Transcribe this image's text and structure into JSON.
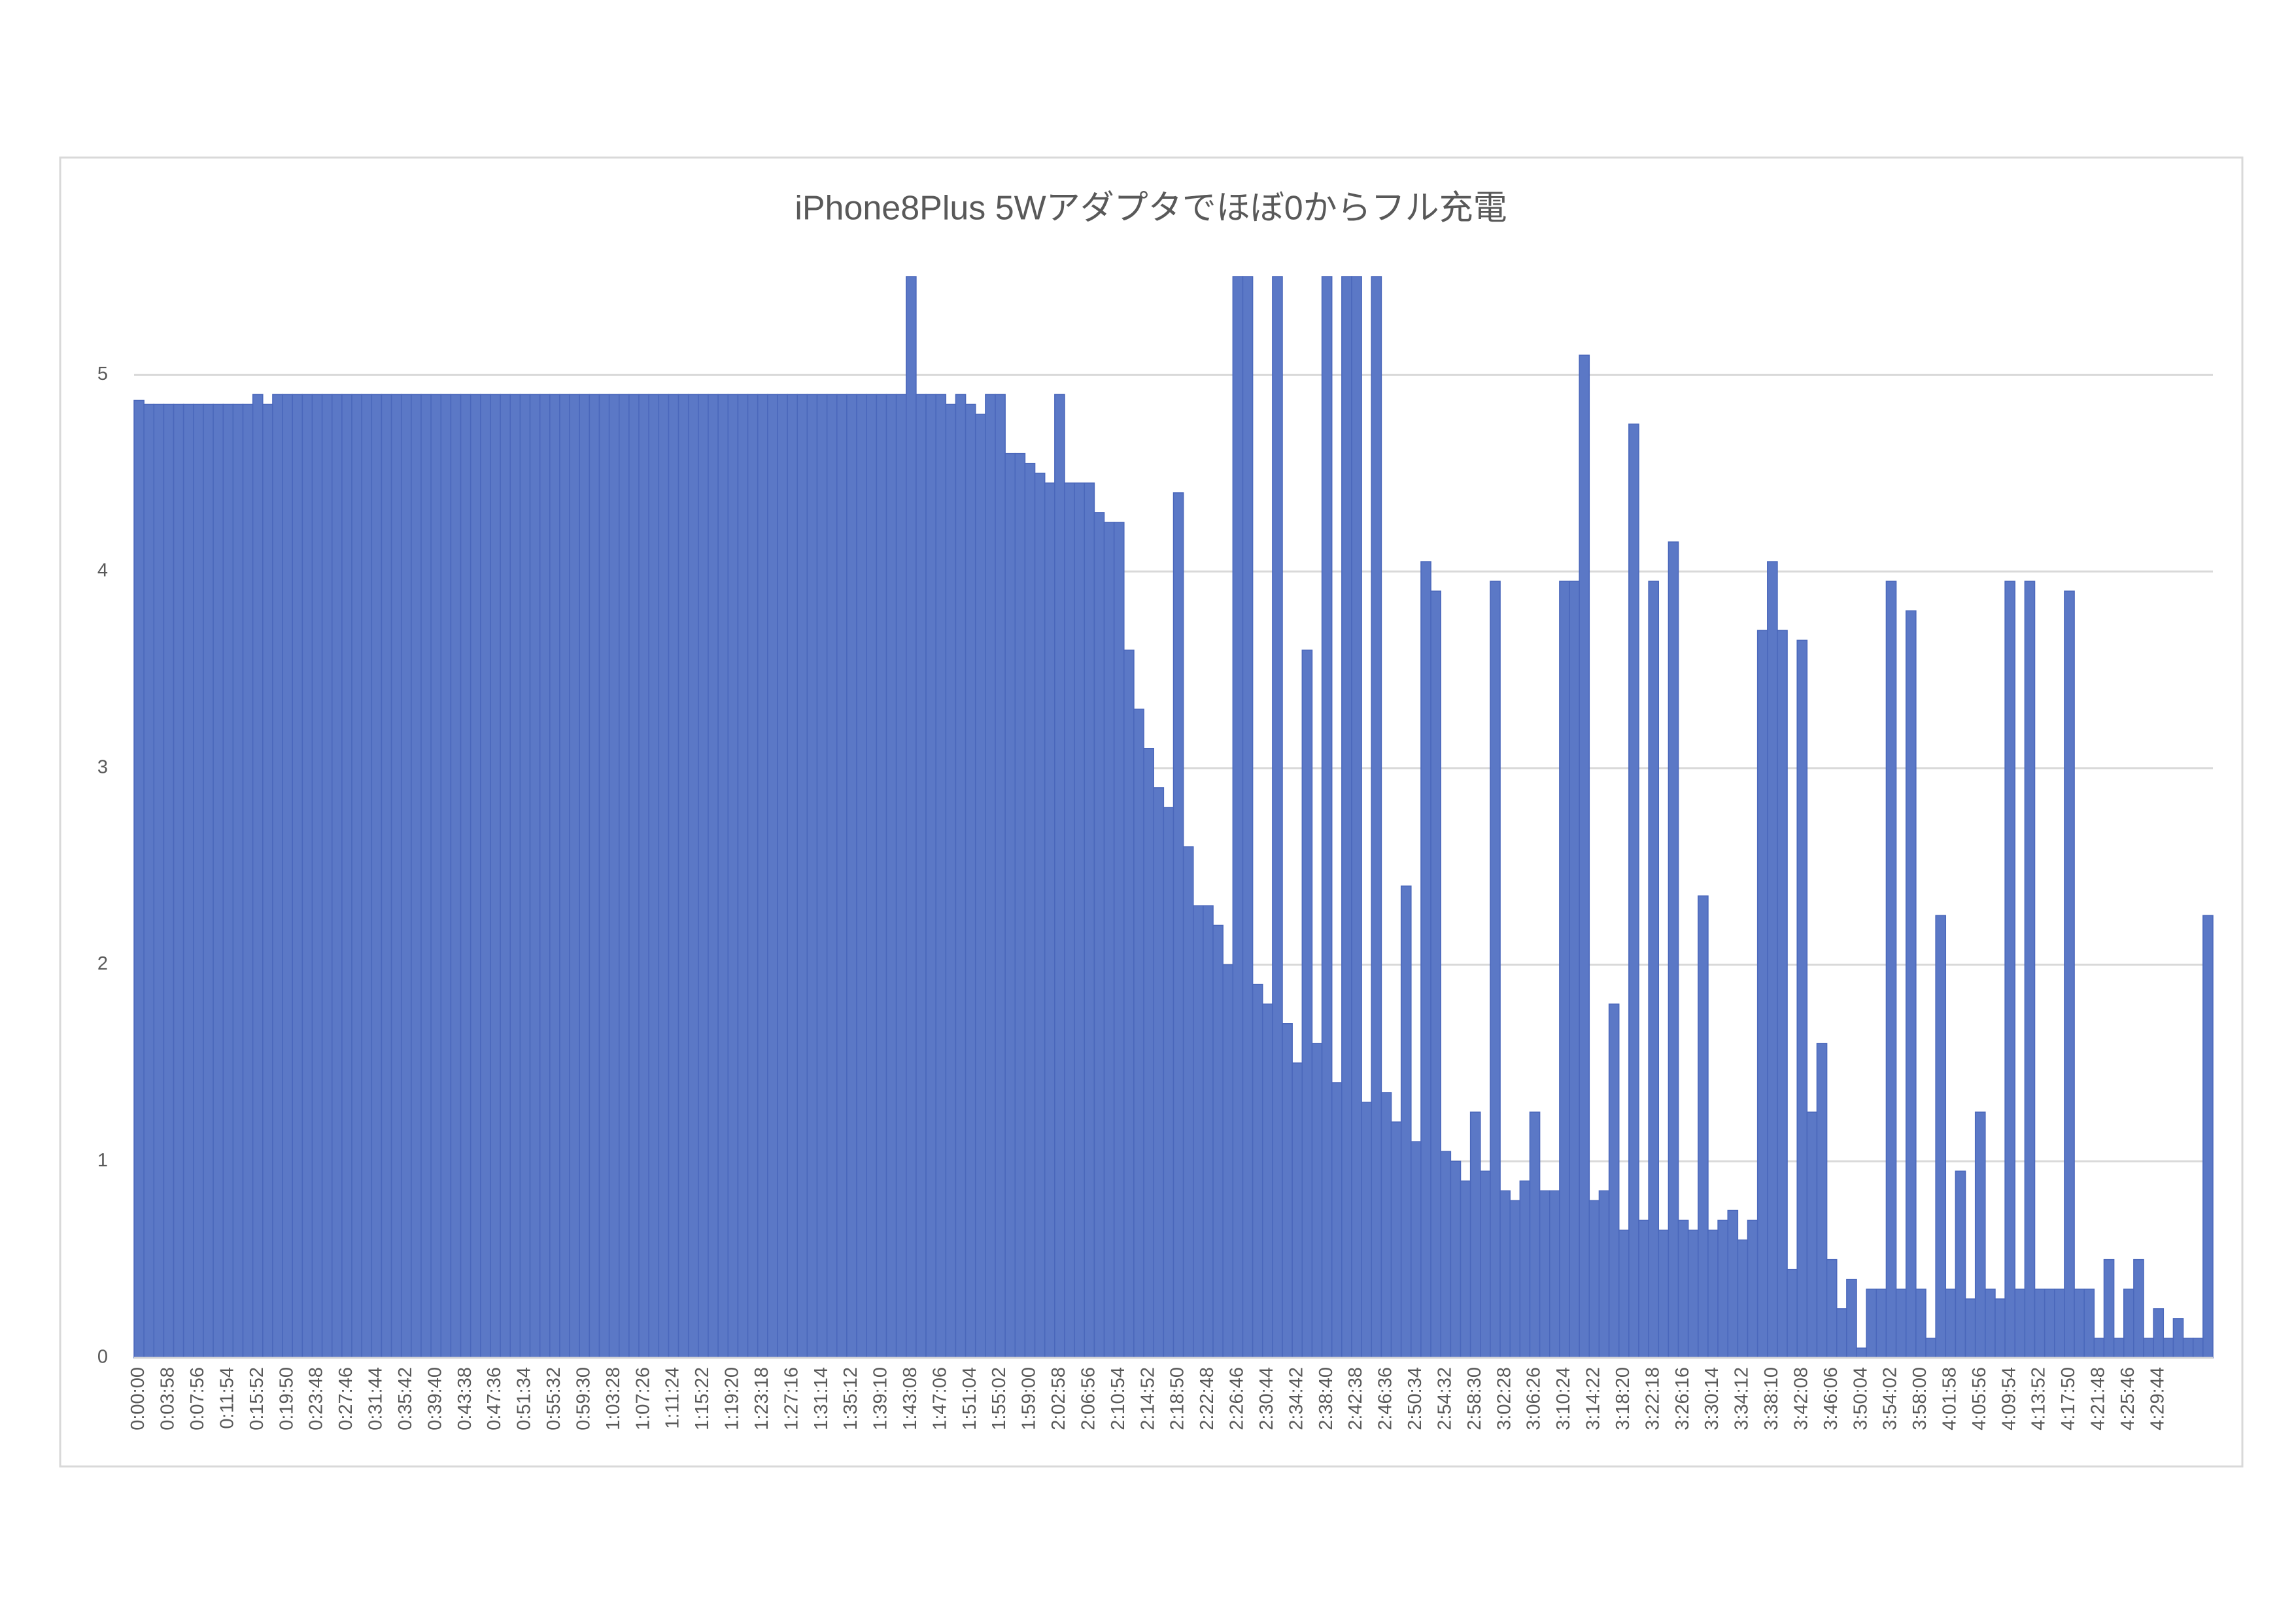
{
  "chart_data": {
    "type": "bar",
    "title": "iPhone8Plus  5Wアダプタでほぼ0からフル充電",
    "categories": [
      "0:00:00",
      null,
      null,
      "0:03:58",
      null,
      null,
      "0:07:56",
      null,
      null,
      "0:11:54",
      null,
      null,
      "0:15:52",
      null,
      null,
      "0:19:50",
      null,
      null,
      "0:23:48",
      null,
      null,
      "0:27:46",
      null,
      null,
      "0:31:44",
      null,
      null,
      "0:35:42",
      null,
      null,
      "0:39:40",
      null,
      null,
      "0:43:38",
      null,
      null,
      "0:47:36",
      null,
      null,
      "0:51:34",
      null,
      null,
      "0:55:32",
      null,
      null,
      "0:59:30",
      null,
      null,
      "1:03:28",
      null,
      null,
      "1:07:26",
      null,
      null,
      "1:11:24",
      null,
      null,
      "1:15:22",
      null,
      null,
      "1:19:20",
      null,
      null,
      "1:23:18",
      null,
      null,
      "1:27:16",
      null,
      null,
      "1:31:14",
      null,
      null,
      "1:35:12",
      null,
      null,
      "1:39:10",
      null,
      null,
      "1:43:08",
      null,
      null,
      "1:47:06",
      null,
      null,
      "1:51:04",
      null,
      null,
      "1:55:02",
      null,
      null,
      "1:59:00",
      null,
      null,
      "2:02:58",
      null,
      null,
      "2:06:56",
      null,
      null,
      "2:10:54",
      null,
      null,
      "2:14:52",
      null,
      null,
      "2:18:50",
      null,
      null,
      "2:22:48",
      null,
      null,
      "2:26:46",
      null,
      null,
      "2:30:44",
      null,
      null,
      "2:34:42",
      null,
      null,
      "2:38:40",
      null,
      null,
      "2:42:38",
      null,
      null,
      "2:46:36",
      null,
      null,
      "2:50:34",
      null,
      null,
      "2:54:32",
      null,
      null,
      "2:58:30",
      null,
      null,
      "3:02:28",
      null,
      null,
      "3:06:26",
      null,
      null,
      "3:10:24",
      null,
      null,
      "3:14:22",
      null,
      null,
      "3:18:20",
      null,
      null,
      "3:22:18",
      null,
      null,
      "3:26:16",
      null,
      null,
      "3:30:14",
      null,
      null,
      "3:34:12",
      null,
      null,
      "3:38:10",
      null,
      null,
      "3:42:08",
      null,
      null,
      "3:46:06",
      null,
      null,
      "3:50:04",
      null,
      null,
      "3:54:02",
      null,
      null,
      "3:58:00",
      null,
      null,
      "4:01:58",
      null,
      null,
      "4:05:56",
      null,
      null,
      "4:09:54",
      null,
      null,
      "4:13:52",
      null,
      null,
      "4:17:50",
      null,
      null,
      "4:21:48",
      null,
      null,
      "4:25:46",
      null,
      null,
      "4:29:44",
      null,
      null,
      null,
      null,
      null
    ],
    "values": [
      4.87,
      4.85,
      4.85,
      4.85,
      4.85,
      4.85,
      4.85,
      4.85,
      4.85,
      4.85,
      4.85,
      4.85,
      4.9,
      4.85,
      4.9,
      4.9,
      4.9,
      4.9,
      4.9,
      4.9,
      4.9,
      4.9,
      4.9,
      4.9,
      4.9,
      4.9,
      4.9,
      4.9,
      4.9,
      4.9,
      4.9,
      4.9,
      4.9,
      4.9,
      4.9,
      4.9,
      4.9,
      4.9,
      4.9,
      4.9,
      4.9,
      4.9,
      4.9,
      4.9,
      4.9,
      4.9,
      4.9,
      4.9,
      4.9,
      4.9,
      4.9,
      4.9,
      4.9,
      4.9,
      4.9,
      4.9,
      4.9,
      4.9,
      4.9,
      4.9,
      4.9,
      4.9,
      4.9,
      4.9,
      4.9,
      4.9,
      4.9,
      4.9,
      4.9,
      4.9,
      4.9,
      4.9,
      4.9,
      4.9,
      4.9,
      4.9,
      4.9,
      4.9,
      5.5,
      4.9,
      4.9,
      4.9,
      4.85,
      4.9,
      4.85,
      4.8,
      4.9,
      4.9,
      4.6,
      4.6,
      4.55,
      4.5,
      4.45,
      4.9,
      4.45,
      4.45,
      4.45,
      4.3,
      4.25,
      4.25,
      3.6,
      3.3,
      3.1,
      2.9,
      2.8,
      4.4,
      2.6,
      2.3,
      2.3,
      2.2,
      2.0,
      5.5,
      5.5,
      1.9,
      1.8,
      5.5,
      1.7,
      1.5,
      3.6,
      1.6,
      5.5,
      1.4,
      5.5,
      5.5,
      1.3,
      5.5,
      1.35,
      1.2,
      2.4,
      1.1,
      4.05,
      3.9,
      1.05,
      1.0,
      0.9,
      1.25,
      0.95,
      3.95,
      0.85,
      0.8,
      0.9,
      1.25,
      0.85,
      0.85,
      3.95,
      3.95,
      5.1,
      0.8,
      0.85,
      1.8,
      0.65,
      4.75,
      0.7,
      3.95,
      0.65,
      4.15,
      0.7,
      0.65,
      2.35,
      0.65,
      0.7,
      0.75,
      0.6,
      0.7,
      3.7,
      4.05,
      3.7,
      0.45,
      3.65,
      1.25,
      1.6,
      0.5,
      0.25,
      0.4,
      0.05,
      0.35,
      0.35,
      3.95,
      0.35,
      3.8,
      0.35,
      0.1,
      2.25,
      0.35,
      0.95,
      0.3,
      1.25,
      0.35,
      0.3,
      3.95,
      0.35,
      3.95,
      0.35,
      0.35,
      0.35,
      3.9,
      0.35,
      0.35,
      0.1,
      0.5,
      0.1,
      0.35,
      0.5,
      0.1,
      0.25,
      0.1,
      0.2,
      0.1,
      0.1,
      2.25
    ],
    "color": "#5b78c6",
    "ylim": [
      0,
      5.5
    ],
    "yticks": [
      0,
      1,
      2,
      3,
      4,
      5
    ],
    "grid": true
  }
}
